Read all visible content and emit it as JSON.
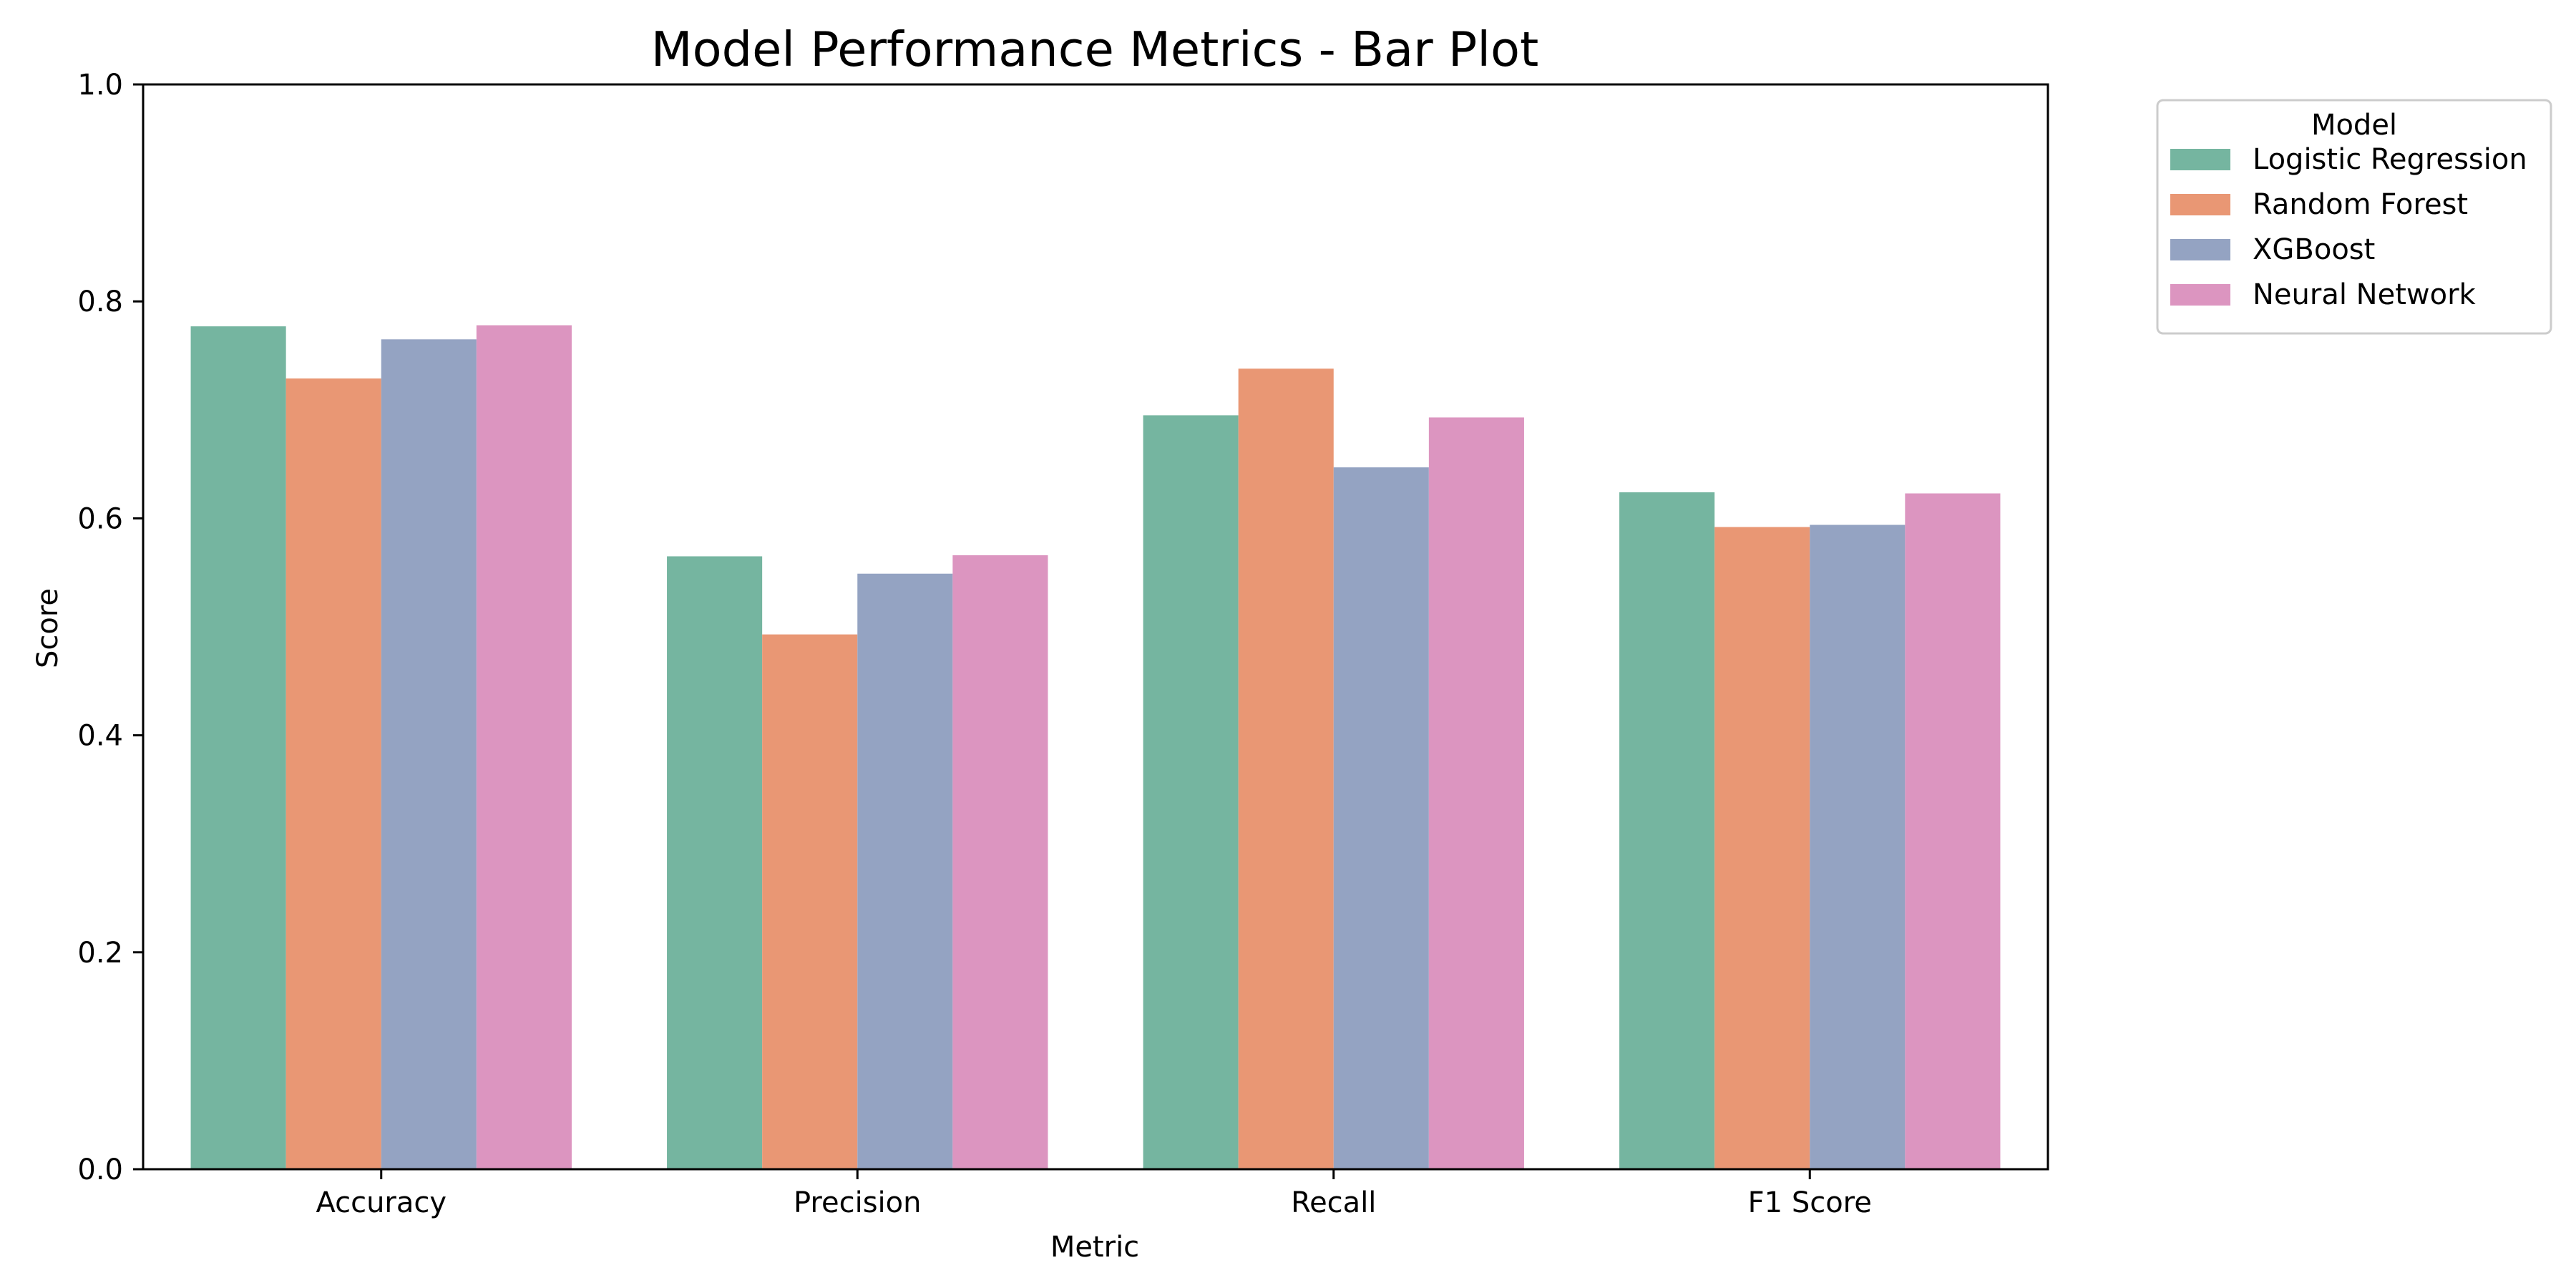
{
  "chart_data": {
    "type": "bar",
    "title": "Model Performance Metrics - Bar Plot",
    "xlabel": "Metric",
    "ylabel": "Score",
    "ylim": [
      0,
      1.0
    ],
    "yticks": [
      "0.0",
      "0.2",
      "0.4",
      "0.6",
      "0.8",
      "1.0"
    ],
    "categories": [
      "Accuracy",
      "Precision",
      "Recall",
      "F1 Score"
    ],
    "legend": {
      "title": "Model",
      "placement": "outside-right-top"
    },
    "grid": false,
    "series": [
      {
        "name": "Logistic Regression",
        "color": "#75b5a0",
        "values": [
          0.777,
          0.565,
          0.695,
          0.624
        ]
      },
      {
        "name": "Random Forest",
        "color": "#e99774",
        "values": [
          0.729,
          0.493,
          0.738,
          0.592
        ]
      },
      {
        "name": "XGBoost",
        "color": "#94a3c2",
        "values": [
          0.765,
          0.549,
          0.647,
          0.594
        ]
      },
      {
        "name": "Neural Network",
        "color": "#dc95c0",
        "values": [
          0.778,
          0.566,
          0.693,
          0.623
        ]
      }
    ]
  }
}
